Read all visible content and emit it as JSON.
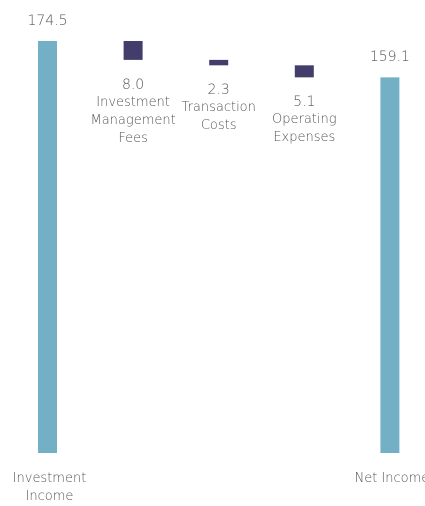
{
  "chart_data": {
    "type": "waterfall",
    "categories": [
      "Investment Income",
      "Investment Management Fees",
      "Transaction Costs",
      "Operating Expenses",
      "Net Income"
    ],
    "values": [
      174.5,
      8.0,
      2.3,
      5.1,
      159.1
    ],
    "value_labels": [
      "174.5",
      "8.0",
      "2.3",
      "5.1",
      "159.1"
    ],
    "totals": [
      true,
      false,
      false,
      false,
      true
    ],
    "colors": {
      "total": "#74b0c5",
      "decrease": "#433d6b"
    }
  }
}
